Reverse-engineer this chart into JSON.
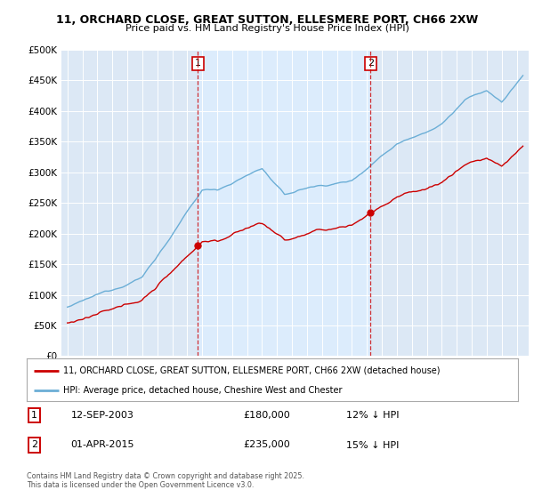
{
  "title_line1": "11, ORCHARD CLOSE, GREAT SUTTON, ELLESMERE PORT, CH66 2XW",
  "title_line2": "Price paid vs. HM Land Registry's House Price Index (HPI)",
  "legend_line1": "11, ORCHARD CLOSE, GREAT SUTTON, ELLESMERE PORT, CH66 2XW (detached house)",
  "legend_line2": "HPI: Average price, detached house, Cheshire West and Chester",
  "footnote": "Contains HM Land Registry data © Crown copyright and database right 2025.\nThis data is licensed under the Open Government Licence v3.0.",
  "transaction1_label": "1",
  "transaction1_date": "12-SEP-2003",
  "transaction1_price": "£180,000",
  "transaction1_note": "12% ↓ HPI",
  "transaction2_label": "2",
  "transaction2_date": "01-APR-2015",
  "transaction2_price": "£235,000",
  "transaction2_note": "15% ↓ HPI",
  "sale1_year": 2003.71,
  "sale1_price": 180000,
  "sale2_year": 2015.25,
  "sale2_price": 235000,
  "hpi_color": "#6baed6",
  "price_color": "#cc0000",
  "vline_color": "#cc0000",
  "shade_color": "#ddeeff",
  "bg_color": "#dce8f5",
  "ylim_min": 0,
  "ylim_max": 500000,
  "yticks": [
    0,
    50000,
    100000,
    150000,
    200000,
    250000,
    300000,
    350000,
    400000,
    450000,
    500000
  ],
  "xlim_min": 1994.6,
  "xlim_max": 2025.8
}
